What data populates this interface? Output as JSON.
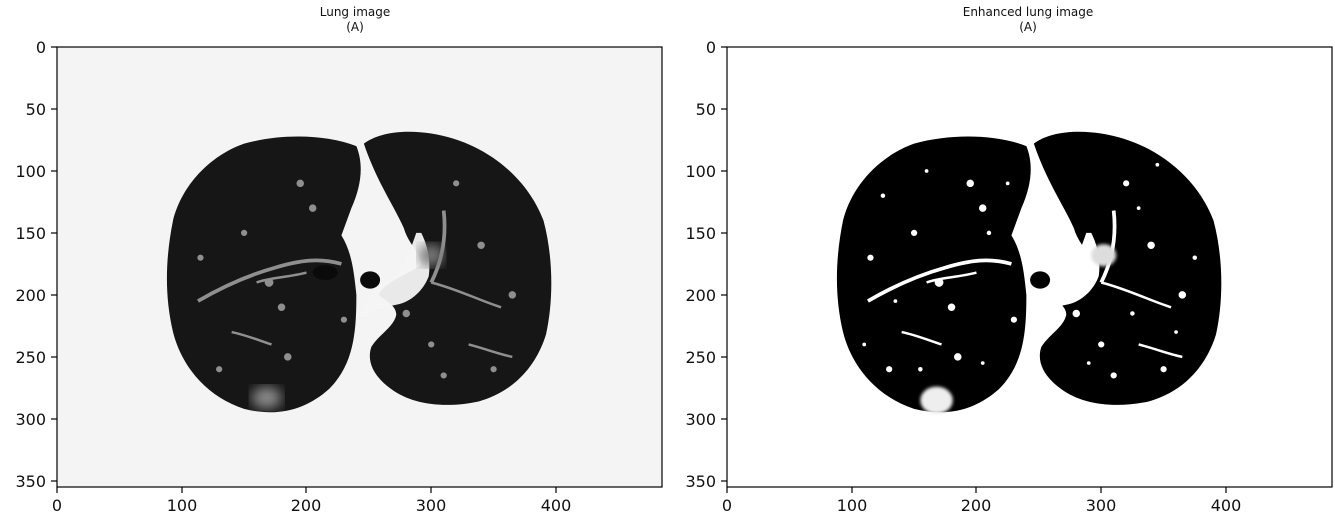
{
  "panels": [
    {
      "title": "Lung image",
      "subtitle": "(A)",
      "image_kind": "ct-lung-slice",
      "background": "#f4f4f4",
      "tissue_color": "#161616",
      "vessel_color": "#b8b8b8",
      "x_ticks": [
        "0",
        "100",
        "200",
        "300",
        "400"
      ],
      "y_ticks": [
        "0",
        "50",
        "100",
        "150",
        "200",
        "250",
        "300",
        "350"
      ]
    },
    {
      "title": "Enhanced lung image",
      "subtitle": "(A)",
      "image_kind": "enhanced-ct-lung-slice",
      "background": "#ffffff",
      "tissue_color": "#000000",
      "vessel_color": "#ffffff",
      "x_ticks": [
        "0",
        "100",
        "200",
        "300",
        "400"
      ],
      "y_ticks": [
        "0",
        "50",
        "100",
        "150",
        "200",
        "250",
        "300",
        "350"
      ]
    }
  ],
  "axis_range": {
    "x": [
      0,
      485
    ],
    "y": [
      0,
      355
    ]
  }
}
